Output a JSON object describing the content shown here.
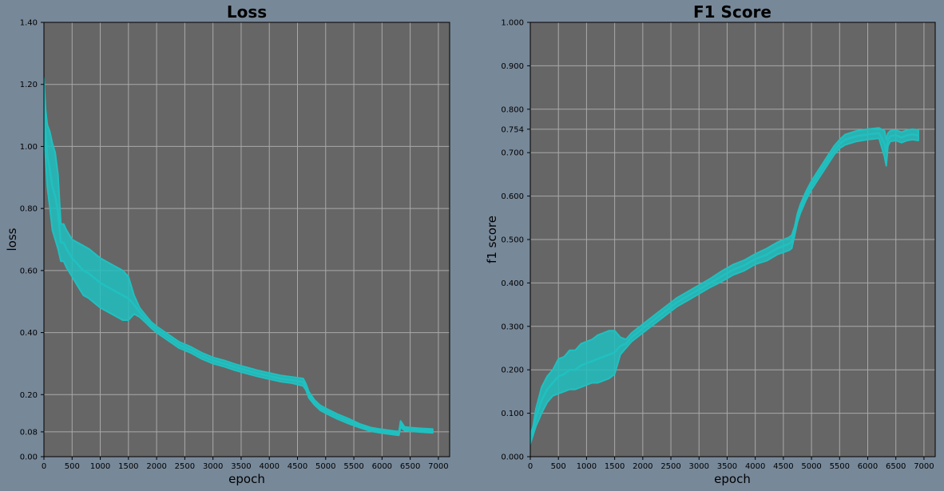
{
  "colors": {
    "figure_background": "#778899",
    "axes_background": "#666666",
    "grid": "#a9a9a9",
    "series": "#20c0c0"
  },
  "chart_data": [
    {
      "type": "line",
      "title": "Loss",
      "xlabel": "epoch",
      "ylabel": "loss",
      "xlim": [
        0,
        7200
      ],
      "ylim": [
        0,
        1.4
      ],
      "grid": true,
      "xticks": [
        0,
        500,
        1000,
        1500,
        2000,
        2500,
        3000,
        3500,
        4000,
        4500,
        5000,
        5500,
        6000,
        6500,
        7000
      ],
      "xtick_labels": [
        "0",
        "500",
        "1000",
        "1500",
        "2000",
        "2500",
        "3000",
        "3500",
        "4000",
        "4500",
        "5000",
        "5500",
        "6000",
        "6500",
        "7000"
      ],
      "yticks": [
        0.0,
        0.08,
        0.2,
        0.4,
        0.6,
        0.8,
        1.0,
        1.2,
        1.4
      ],
      "ytick_labels": [
        "0.00",
        "0.08",
        "0.20",
        "0.40",
        "0.60",
        "0.80",
        "1.00",
        "1.20",
        "1.40"
      ],
      "series": [
        {
          "x": [
            0,
            30,
            60,
            100,
            150,
            200,
            250,
            300,
            350,
            400,
            500,
            600,
            700,
            800,
            900,
            1000,
            1100,
            1200,
            1300,
            1400,
            1500,
            1600,
            1700,
            1800,
            1900,
            2000,
            2200,
            2400,
            2600,
            2800,
            3000,
            3200,
            3400,
            3600,
            3800,
            4000,
            4200,
            4400,
            4600,
            4650,
            4700,
            4800,
            4900,
            5000,
            5200,
            5400,
            5600,
            5800,
            6000,
            6200,
            6300,
            6330,
            6400,
            6500,
            6700,
            6900
          ],
          "y": [
            1.14,
            1.04,
            0.97,
            0.93,
            0.87,
            0.84,
            0.79,
            0.69,
            0.69,
            0.67,
            0.64,
            0.62,
            0.6,
            0.59,
            0.575,
            0.56,
            0.55,
            0.54,
            0.53,
            0.52,
            0.51,
            0.49,
            0.465,
            0.445,
            0.425,
            0.41,
            0.385,
            0.36,
            0.345,
            0.325,
            0.31,
            0.3,
            0.288,
            0.278,
            0.268,
            0.26,
            0.252,
            0.247,
            0.24,
            0.225,
            0.2,
            0.175,
            0.158,
            0.148,
            0.13,
            0.115,
            0.1,
            0.088,
            0.082,
            0.077,
            0.075,
            0.105,
            0.09,
            0.088,
            0.085,
            0.083
          ],
          "band": [
            0.08,
            0.08,
            0.1,
            0.12,
            0.14,
            0.14,
            0.12,
            0.06,
            0.06,
            0.06,
            0.06,
            0.07,
            0.08,
            0.08,
            0.08,
            0.08,
            0.08,
            0.08,
            0.08,
            0.08,
            0.07,
            0.03,
            0.015,
            0.012,
            0.01,
            0.01,
            0.01,
            0.01,
            0.01,
            0.01,
            0.01,
            0.01,
            0.01,
            0.01,
            0.01,
            0.01,
            0.01,
            0.01,
            0.012,
            0.01,
            0.01,
            0.008,
            0.008,
            0.008,
            0.008,
            0.008,
            0.006,
            0.006,
            0.006,
            0.006,
            0.006,
            0.01,
            0.006,
            0.006,
            0.006,
            0.006
          ]
        }
      ]
    },
    {
      "type": "line",
      "title": "F1 Score",
      "xlabel": "epoch",
      "ylabel": "f1 score",
      "xlim": [
        0,
        7200
      ],
      "ylim": [
        0,
        1.0
      ],
      "grid": true,
      "xticks": [
        0,
        500,
        1000,
        1500,
        2000,
        2500,
        3000,
        3500,
        4000,
        4500,
        5000,
        5500,
        6000,
        6500,
        7000
      ],
      "xtick_labels": [
        "0",
        "500",
        "1000",
        "1500",
        "2000",
        "2500",
        "3000",
        "3500",
        "4000",
        "4500",
        "5000",
        "5500",
        "6000",
        "6500",
        "7000"
      ],
      "yticks": [
        0.0,
        0.1,
        0.2,
        0.3,
        0.4,
        0.5,
        0.6,
        0.7,
        0.754,
        0.8,
        0.9,
        1.0
      ],
      "ytick_labels": [
        "0.000",
        "0.100",
        "0.200",
        "0.300",
        "0.400",
        "0.500",
        "0.600",
        "0.700",
        "0.754",
        "0.800",
        "0.900",
        "1.000"
      ],
      "series": [
        {
          "x": [
            0,
            50,
            100,
            150,
            200,
            300,
            400,
            500,
            600,
            700,
            800,
            900,
            1000,
            1100,
            1200,
            1300,
            1400,
            1500,
            1600,
            1700,
            1800,
            2000,
            2200,
            2400,
            2600,
            2800,
            3000,
            3200,
            3400,
            3600,
            3800,
            4000,
            4200,
            4400,
            4600,
            4650,
            4700,
            4750,
            4800,
            4900,
            5000,
            5100,
            5200,
            5300,
            5400,
            5500,
            5600,
            5800,
            6000,
            6200,
            6300,
            6330,
            6360,
            6400,
            6500,
            6600,
            6700,
            6800,
            6900
          ],
          "y": [
            0.04,
            0.06,
            0.09,
            0.11,
            0.13,
            0.155,
            0.17,
            0.185,
            0.19,
            0.2,
            0.2,
            0.21,
            0.215,
            0.22,
            0.225,
            0.23,
            0.235,
            0.24,
            0.255,
            0.26,
            0.275,
            0.295,
            0.315,
            0.335,
            0.355,
            0.37,
            0.385,
            0.4,
            0.415,
            0.43,
            0.44,
            0.455,
            0.465,
            0.48,
            0.49,
            0.495,
            0.52,
            0.55,
            0.57,
            0.6,
            0.625,
            0.645,
            0.665,
            0.685,
            0.705,
            0.72,
            0.73,
            0.738,
            0.742,
            0.745,
            0.72,
            0.7,
            0.73,
            0.738,
            0.74,
            0.735,
            0.74,
            0.742,
            0.74
          ],
          "band": [
            0.01,
            0.01,
            0.02,
            0.025,
            0.03,
            0.03,
            0.03,
            0.04,
            0.04,
            0.045,
            0.045,
            0.05,
            0.05,
            0.05,
            0.055,
            0.055,
            0.055,
            0.05,
            0.02,
            0.01,
            0.01,
            0.01,
            0.01,
            0.01,
            0.01,
            0.01,
            0.01,
            0.01,
            0.012,
            0.012,
            0.012,
            0.012,
            0.014,
            0.014,
            0.015,
            0.015,
            0.01,
            0.01,
            0.01,
            0.01,
            0.01,
            0.01,
            0.01,
            0.01,
            0.01,
            0.01,
            0.012,
            0.012,
            0.012,
            0.012,
            0.03,
            0.03,
            0.015,
            0.012,
            0.012,
            0.012,
            0.012,
            0.012,
            0.012
          ]
        }
      ]
    }
  ]
}
